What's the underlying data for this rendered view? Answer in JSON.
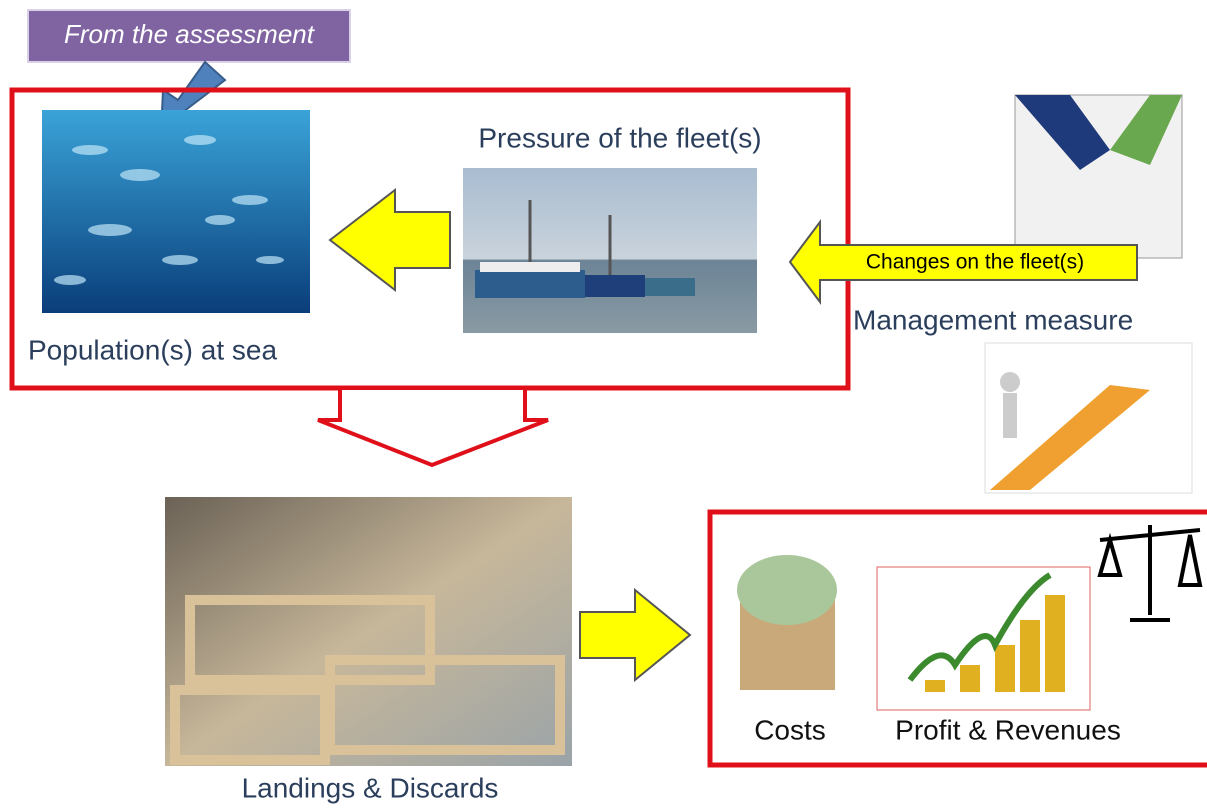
{
  "labels": {
    "source_note": "From the assessment",
    "fleet_pressure": "Pressure of the fleet(s)",
    "population": "Population(s) at sea",
    "fleet_changes": "Changes on the fleet(s)",
    "management": "Management measure",
    "landings": "Landings & Discards",
    "costs": "Costs",
    "profit": "Profit & Revenues"
  }
}
